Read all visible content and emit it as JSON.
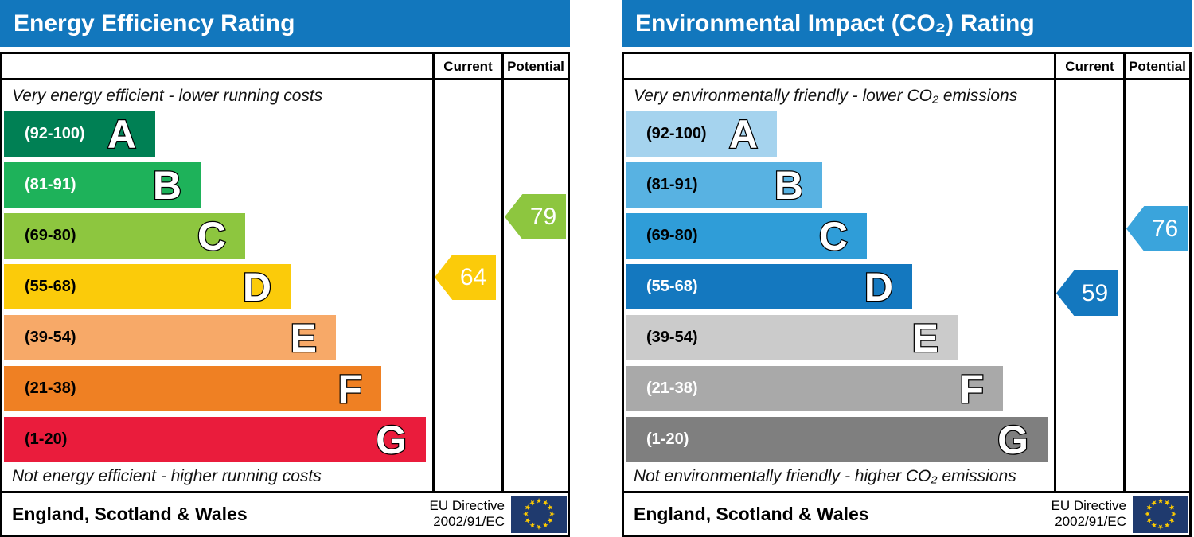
{
  "chart_data": [
    {
      "type": "bar",
      "title": "Energy Efficiency Rating",
      "header_bg": "#1277bd",
      "columns": {
        "current": "Current",
        "potential": "Potential"
      },
      "top_note": "Very energy efficient - lower running costs",
      "bottom_note": "Not energy efficient - higher running costs",
      "bands": [
        {
          "letter": "A",
          "range": "(92-100)",
          "min": 92,
          "max": 100,
          "color": "#008054",
          "range_text_color": "#ffffff"
        },
        {
          "letter": "B",
          "range": "(81-91)",
          "min": 81,
          "max": 91,
          "color": "#1eb25a",
          "range_text_color": "#ffffff"
        },
        {
          "letter": "C",
          "range": "(69-80)",
          "min": 69,
          "max": 80,
          "color": "#8dc63f",
          "range_text_color": "#000000"
        },
        {
          "letter": "D",
          "range": "(55-68)",
          "min": 55,
          "max": 68,
          "color": "#fbcb0a",
          "range_text_color": "#000000"
        },
        {
          "letter": "E",
          "range": "(39-54)",
          "min": 39,
          "max": 54,
          "color": "#f7a968",
          "range_text_color": "#000000"
        },
        {
          "letter": "F",
          "range": "(21-38)",
          "min": 21,
          "max": 38,
          "color": "#ef8023",
          "range_text_color": "#000000"
        },
        {
          "letter": "G",
          "range": "(1-20)",
          "min": 1,
          "max": 20,
          "color": "#ea1c3c",
          "range_text_color": "#000000"
        }
      ],
      "current": {
        "value": 64,
        "band": "D",
        "color": "#fbcb0a"
      },
      "potential": {
        "value": 79,
        "band": "C",
        "color": "#8dc63f"
      },
      "footer": {
        "region": "England, Scotland & Wales",
        "directive_line1": "EU Directive",
        "directive_line2": "2002/91/EC",
        "flag_bg": "#1f3a6e",
        "star_color": "#ffcc00"
      }
    },
    {
      "type": "bar",
      "title": "Environmental Impact (CO₂) Rating",
      "header_bg": "#1277bd",
      "columns": {
        "current": "Current",
        "potential": "Potential"
      },
      "top_note": "Very environmentally friendly - lower CO₂ emissions",
      "bottom_note": "Not environmentally friendly - higher CO₂ emissions",
      "bands": [
        {
          "letter": "A",
          "range": "(92-100)",
          "min": 92,
          "max": 100,
          "color": "#a5d3ee",
          "range_text_color": "#000000"
        },
        {
          "letter": "B",
          "range": "(81-91)",
          "min": 81,
          "max": 91,
          "color": "#58b2e2",
          "range_text_color": "#000000"
        },
        {
          "letter": "C",
          "range": "(69-80)",
          "min": 69,
          "max": 80,
          "color": "#2f9dd8",
          "range_text_color": "#000000"
        },
        {
          "letter": "D",
          "range": "(55-68)",
          "min": 55,
          "max": 68,
          "color": "#1478bf",
          "range_text_color": "#ffffff"
        },
        {
          "letter": "E",
          "range": "(39-54)",
          "min": 39,
          "max": 54,
          "color": "#cbcbcb",
          "range_text_color": "#000000"
        },
        {
          "letter": "F",
          "range": "(21-38)",
          "min": 21,
          "max": 38,
          "color": "#a9a9a9",
          "range_text_color": "#ffffff"
        },
        {
          "letter": "G",
          "range": "(1-20)",
          "min": 1,
          "max": 20,
          "color": "#7f7f7f",
          "range_text_color": "#ffffff"
        }
      ],
      "current": {
        "value": 59,
        "band": "D",
        "color": "#1478bf"
      },
      "potential": {
        "value": 76,
        "band": "C",
        "color": "#3aa4dc"
      },
      "footer": {
        "region": "England, Scotland & Wales",
        "directive_line1": "EU Directive",
        "directive_line2": "2002/91/EC",
        "flag_bg": "#1f3a6e",
        "star_color": "#ffcc00"
      }
    }
  ]
}
